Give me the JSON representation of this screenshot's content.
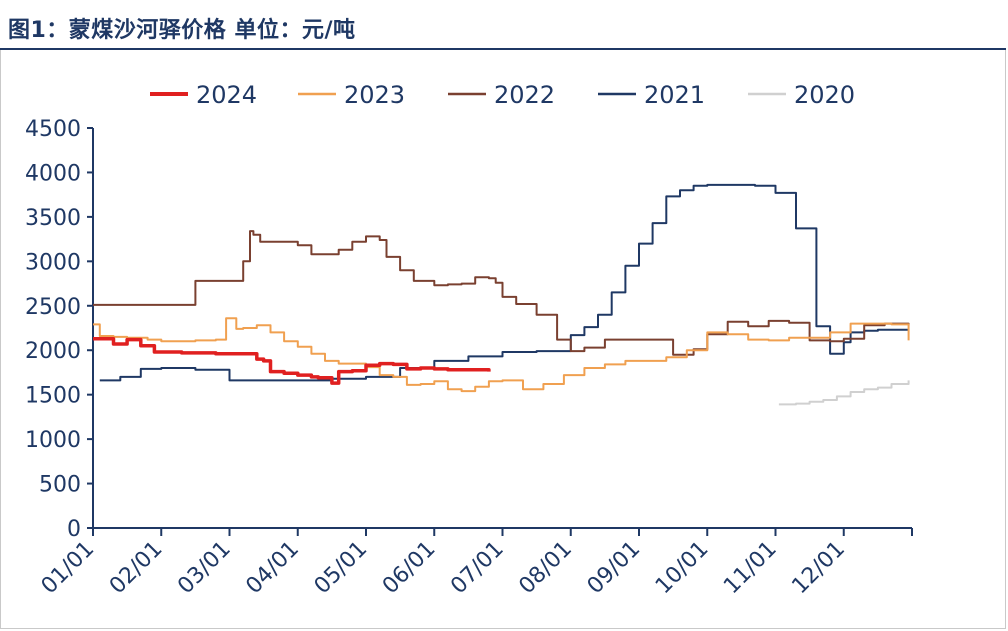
{
  "title": "图1：蒙煤沙河驿价格  单位：元/吨",
  "chart_data": {
    "type": "line",
    "title": "图1：蒙煤沙河驿价格  单位：元/吨",
    "unit": "元/吨",
    "xlabel": "",
    "ylabel": "",
    "ylim": [
      0,
      4500
    ],
    "yticks": [
      0,
      500,
      1000,
      1500,
      2000,
      2500,
      3000,
      3500,
      4000,
      4500
    ],
    "ytick_labels": [
      "0",
      "500",
      "1000",
      "1500",
      "2000",
      "2500",
      "3000",
      "3500",
      "4000",
      "4500"
    ],
    "xlim": [
      0,
      12
    ],
    "xticks": [
      0,
      1,
      2,
      3,
      4,
      5,
      6,
      7,
      8,
      9,
      10,
      11
    ],
    "xtick_labels": [
      "01/01",
      "02/01",
      "03/01",
      "04/01",
      "05/01",
      "06/01",
      "07/01",
      "08/01",
      "09/01",
      "10/01",
      "11/01",
      "12/01"
    ],
    "legend_position": "top",
    "series": [
      {
        "name": "2024",
        "color": "#e02020",
        "width": 3.5,
        "x": [
          0,
          0.2,
          0.3,
          0.5,
          0.7,
          0.9,
          1.3,
          1.8,
          2.3,
          2.4,
          2.5,
          2.6,
          2.8,
          3.0,
          3.2,
          3.3,
          3.5,
          3.6,
          3.8,
          4.0,
          4.2,
          4.4,
          4.6,
          4.8,
          5.0,
          5.2,
          5.4,
          5.6,
          5.8
        ],
        "y": [
          2130,
          2130,
          2070,
          2120,
          2050,
          1980,
          1970,
          1960,
          1960,
          1900,
          1880,
          1760,
          1740,
          1720,
          1700,
          1690,
          1630,
          1760,
          1770,
          1830,
          1850,
          1840,
          1790,
          1800,
          1790,
          1780,
          1780,
          1780,
          1760
        ]
      },
      {
        "name": "2023",
        "color": "#f0a050",
        "width": 2,
        "x": [
          0,
          0.1,
          0.3,
          0.5,
          0.8,
          1.0,
          1.2,
          1.5,
          1.8,
          1.95,
          2.1,
          2.2,
          2.4,
          2.6,
          2.8,
          3.0,
          3.2,
          3.4,
          3.6,
          3.8,
          4.0,
          4.2,
          4.4,
          4.6,
          4.8,
          5.0,
          5.2,
          5.4,
          5.6,
          5.8,
          6.0,
          6.3,
          6.6,
          6.9,
          7.2,
          7.5,
          7.8,
          8.1,
          8.4,
          8.7,
          9.0,
          9.3,
          9.6,
          9.9,
          10.2,
          10.5,
          10.8,
          11.1,
          11.4,
          11.7,
          11.95
        ],
        "y": [
          2290,
          2160,
          2150,
          2140,
          2120,
          2100,
          2100,
          2110,
          2120,
          2360,
          2240,
          2250,
          2280,
          2200,
          2100,
          2040,
          1960,
          1880,
          1850,
          1850,
          1810,
          1720,
          1700,
          1610,
          1620,
          1650,
          1560,
          1540,
          1590,
          1650,
          1660,
          1560,
          1620,
          1720,
          1800,
          1840,
          1880,
          1880,
          1920,
          2000,
          2200,
          2180,
          2120,
          2110,
          2140,
          2140,
          2200,
          2300,
          2300,
          2290,
          2110
        ]
      },
      {
        "name": "2022",
        "color": "#7a4030",
        "width": 2,
        "x": [
          0,
          0.5,
          1.0,
          1.35,
          1.5,
          2.0,
          2.2,
          2.3,
          2.35,
          2.45,
          2.55,
          3.0,
          3.2,
          3.4,
          3.6,
          3.8,
          4.0,
          4.2,
          4.3,
          4.5,
          4.7,
          5.0,
          5.2,
          5.4,
          5.6,
          5.8,
          5.9,
          6.0,
          6.2,
          6.5,
          6.8,
          7.0,
          7.2,
          7.5,
          8.0,
          8.5,
          8.8,
          9.0,
          9.3,
          9.6,
          9.9,
          10.2,
          10.5,
          10.8,
          11.0,
          11.3,
          11.6,
          11.95
        ],
        "y": [
          2510,
          2510,
          2510,
          2510,
          2780,
          2780,
          3000,
          3340,
          3300,
          3220,
          3220,
          3180,
          3080,
          3080,
          3130,
          3220,
          3280,
          3240,
          3050,
          2900,
          2780,
          2730,
          2740,
          2750,
          2820,
          2810,
          2760,
          2600,
          2520,
          2400,
          2120,
          1990,
          2030,
          2120,
          2120,
          1950,
          2010,
          2180,
          2320,
          2270,
          2330,
          2310,
          2110,
          2100,
          2130,
          2280,
          2300,
          2280
        ]
      },
      {
        "name": "2021",
        "color": "#1f3864",
        "width": 2,
        "x": [
          0.1,
          0.4,
          0.7,
          1.0,
          1.5,
          2.0,
          2.3,
          2.6,
          3.0,
          3.5,
          4.0,
          4.5,
          5.0,
          5.5,
          6.0,
          6.5,
          6.8,
          7.0,
          7.2,
          7.4,
          7.6,
          7.8,
          8.0,
          8.2,
          8.4,
          8.6,
          8.8,
          9.0,
          9.2,
          9.4,
          9.7,
          10.0,
          10.3,
          10.6,
          10.8,
          11.0,
          11.1,
          11.3,
          11.5,
          11.7,
          11.95
        ],
        "y": [
          1660,
          1700,
          1790,
          1800,
          1780,
          1660,
          1660,
          1660,
          1660,
          1680,
          1700,
          1800,
          1880,
          1930,
          1980,
          1990,
          1990,
          2170,
          2260,
          2400,
          2650,
          2950,
          3200,
          3430,
          3730,
          3800,
          3850,
          3860,
          3860,
          3860,
          3850,
          3770,
          3370,
          2270,
          1960,
          2090,
          2200,
          2220,
          2230,
          2230,
          2230
        ]
      },
      {
        "name": "2020",
        "color": "#d0d0d0",
        "width": 2,
        "x": [
          10.05,
          10.3,
          10.5,
          10.7,
          10.9,
          11.1,
          11.3,
          11.5,
          11.7,
          11.95
        ],
        "y": [
          1390,
          1400,
          1420,
          1440,
          1480,
          1530,
          1560,
          1580,
          1620,
          1660
        ]
      }
    ]
  }
}
